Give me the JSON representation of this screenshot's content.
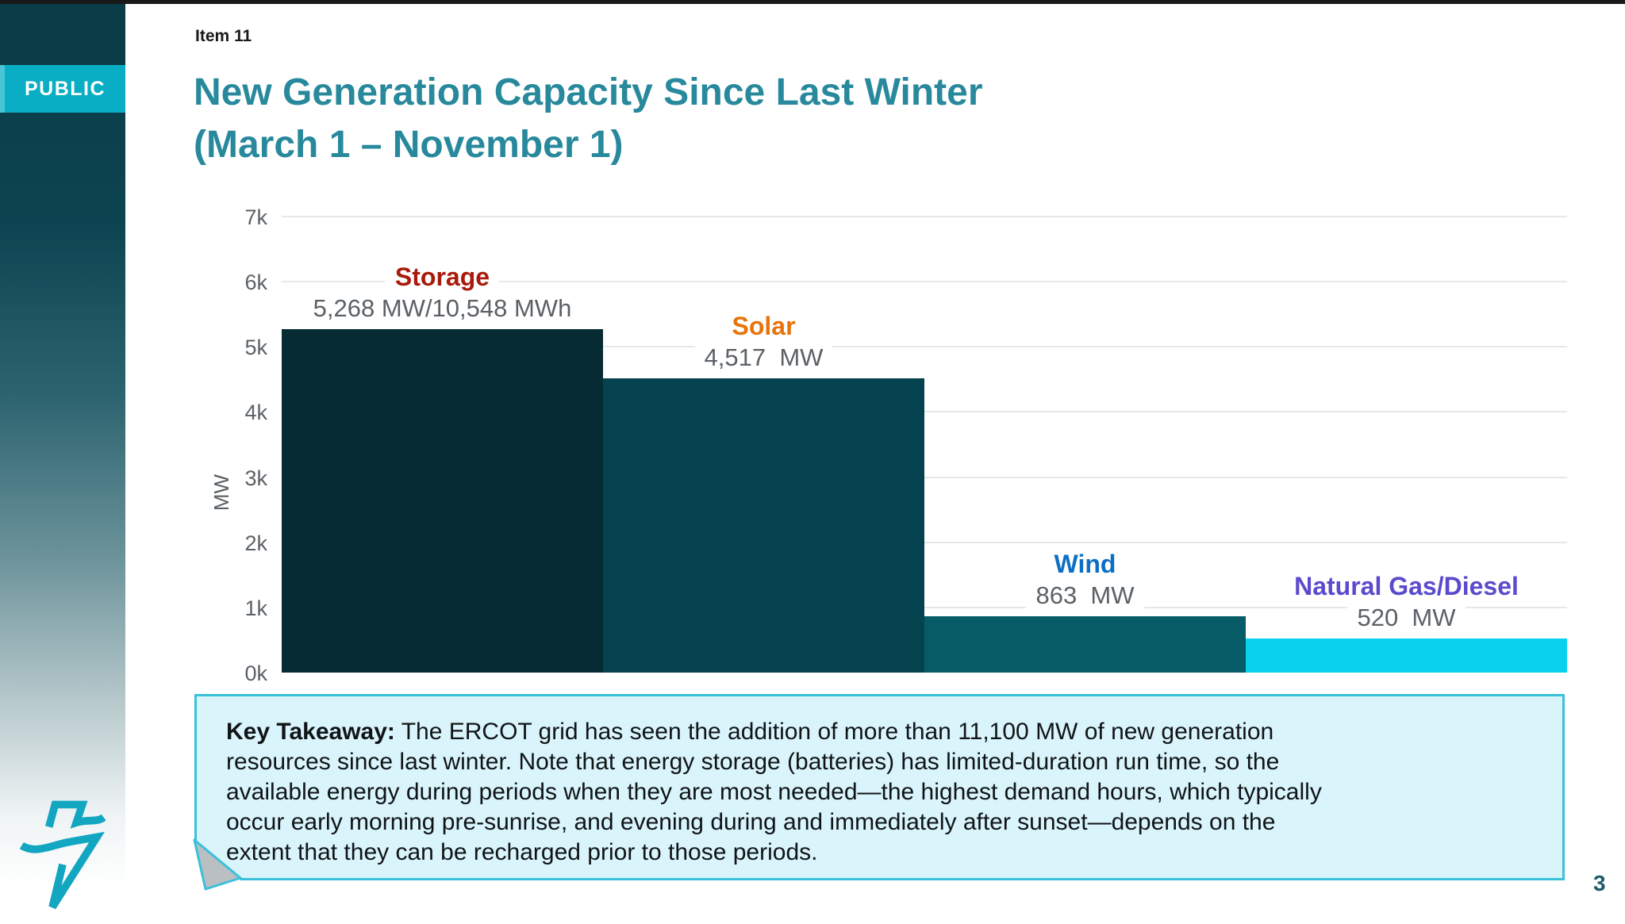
{
  "slide": {
    "classification_badge": "PUBLIC",
    "item_label": "Item 11",
    "title_line1": "New Generation Capacity Since Last Winter",
    "title_line2": "(March 1 – November 1)",
    "page_number": "3",
    "logo_icon": "ercot-lightning-bolt-icon",
    "logo_color": "#12a6c1"
  },
  "chart_data": {
    "type": "bar",
    "title": "",
    "xlabel": "",
    "ylabel": "MW",
    "ylim": [
      0,
      7000
    ],
    "ytick_labels": [
      "0k",
      "1k",
      "2k",
      "3k",
      "4k",
      "5k",
      "6k",
      "7k"
    ],
    "grid": true,
    "legend": "none",
    "categories": [
      "Storage",
      "Solar",
      "Wind",
      "Natural Gas/Diesel"
    ],
    "values": [
      5268,
      4517,
      863,
      520
    ],
    "value_labels": [
      "5,268 MW/10,548 MWh",
      "4,517  MW",
      "863  MW",
      "520  MW"
    ],
    "bar_colors": [
      "#062b33",
      "#04434d",
      "#065b67",
      "#0ad1ee"
    ],
    "label_colors": [
      "#a81b0b",
      "#e8730b",
      "#0d6fc4",
      "#5a4bcd"
    ]
  },
  "takeaway": {
    "key_label": "Key Takeaway:",
    "body": "The ERCOT grid has seen the addition of more than 11,100 MW of new generation\nresources since last winter. Note that energy storage (batteries) has limited-duration run time, so the\navailable energy during periods when they are most needed—the highest demand hours, which typically\noccur early morning pre-sunrise, and evening during and immediately after sunset—depends on the\nextent that they can be recharged prior to those periods.",
    "border_color": "#3bc0da",
    "fill_color": "#d9f4fb"
  },
  "colors": {
    "title_teal": "#28899c",
    "badge_cyan": "#09adc4",
    "sidebar_dark_teal": "#0b3d49"
  }
}
